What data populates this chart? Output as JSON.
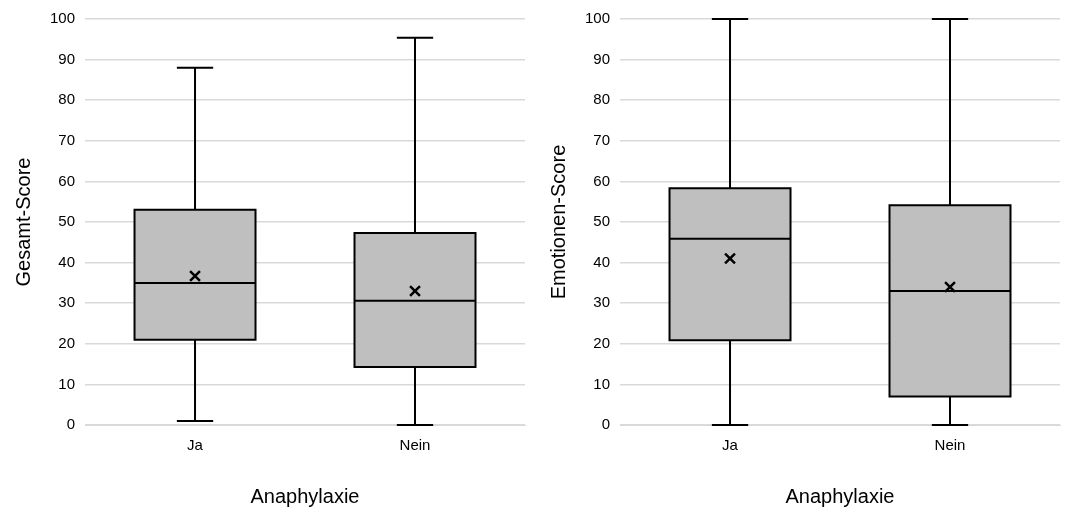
{
  "chart_data": [
    {
      "type": "box",
      "categories": [
        "Ja",
        "Nein"
      ],
      "xlabel": "Anaphylaxie",
      "ylabel": "Gesamt-Score",
      "color": "#bfbfbf",
      "boxes": [
        {
          "low": 1,
          "q1": 21,
          "median": 35,
          "q3": 53,
          "high": 88,
          "mean": 36.7
        },
        {
          "low": 0,
          "q1": 14.3,
          "median": 30.6,
          "q3": 47.3,
          "high": 95.4,
          "mean": 33
        }
      ],
      "ylim": [
        0,
        100
      ],
      "yticks": [
        0,
        10,
        20,
        30,
        40,
        50,
        60,
        70,
        80,
        90,
        100
      ],
      "grid": "y",
      "marker": "cross"
    },
    {
      "type": "box",
      "categories": [
        "Ja",
        "Nein"
      ],
      "xlabel": "Anaphylaxie",
      "ylabel": "Emotionen-Score",
      "color": "#bfbfbf",
      "boxes": [
        {
          "low": 0,
          "q1": 20.9,
          "median": 45.9,
          "q3": 58.3,
          "high": 100,
          "mean": 41
        },
        {
          "low": 0,
          "q1": 7,
          "median": 33,
          "q3": 54.1,
          "high": 100,
          "mean": 34
        }
      ],
      "ylim": [
        0,
        100
      ],
      "yticks": [
        0,
        10,
        20,
        30,
        40,
        50,
        60,
        70,
        80,
        90,
        100
      ],
      "grid": "y",
      "marker": "cross"
    }
  ]
}
